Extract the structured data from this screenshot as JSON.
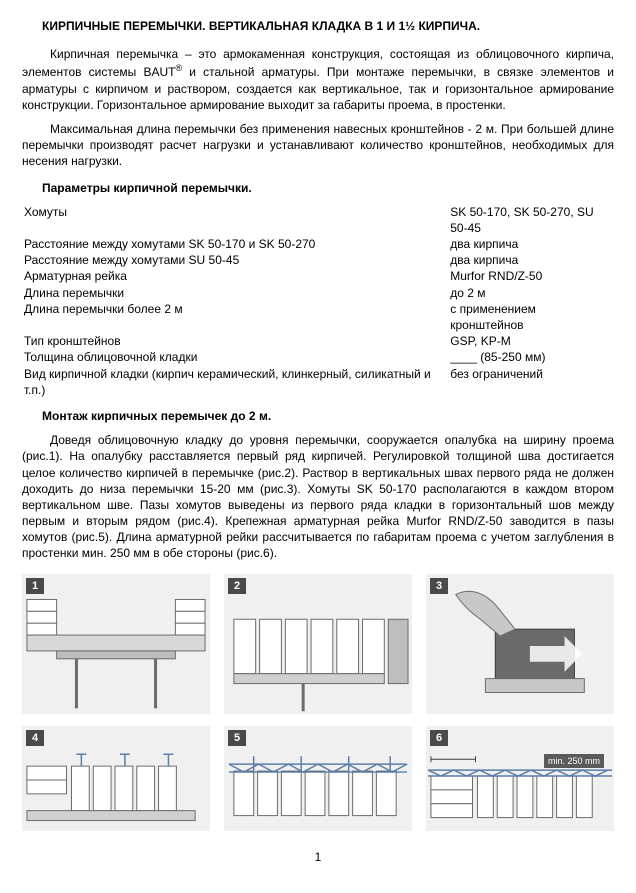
{
  "title": "КИРПИЧНЫЕ ПЕРЕМЫЧКИ. ВЕРТИКАЛЬНАЯ КЛАДКА В 1 И 1½ КИРПИЧА.",
  "intro1": "Кирпичная перемычка – это армокаменная конструкция, состоящая из облицовочного кирпича, элементов системы BAUT",
  "intro1b": " и стальной арматуры. При монтаже перемычки, в связке элементов и арматуры с кирпичом и раствором, создается как вертикальное, так и горизонтальное армирование конструкции. Горизонтальное армирование выходит за габариты проема, в простенки.",
  "intro2": "Максимальная длина перемычки без применения навесных кронштейнов - 2 м. При большей длине перемычки производят расчет нагрузки и устанавливают количество кронштейнов, необходимых для несения нагрузки.",
  "params_head": "Параметры кирпичной перемычки.",
  "params": [
    {
      "l": "Хомуты",
      "r": "SK 50-170, SK 50-270, SU 50-45"
    },
    {
      "l": "Расстояние между хомутами SK 50-170 и SK 50-270",
      "r": "два кирпича"
    },
    {
      "l": "Расстояние между хомутами SU 50-45",
      "r": "два кирпича"
    },
    {
      "l": "Арматурная рейка",
      "r": "Murfor RND/Z-50"
    },
    {
      "l": "Длина перемычки",
      "r": "до 2 м"
    },
    {
      "l": "Длина перемычки более 2 м",
      "r": "с применением кронштейнов"
    },
    {
      "l": "Тип кронштейнов",
      "r": "GSP, KP-M"
    },
    {
      "l": "Толщина облицовочной кладки",
      "r": "____ (85-250 мм)"
    },
    {
      "l": "Вид кирпичной кладки (кирпич керамический, клинкерный, силикатный и т.п.)",
      "r": "без ограничений"
    }
  ],
  "install_head": "Монтаж кирпичных перемычек до 2 м.",
  "install_para": "Доведя облицовочную кладку до уровня перемычки, сооружается опалубка на ширину проема (рис.1). На опалубку расставляется первый ряд кирпичей. Регулировкой толщиной шва достигается целое количество кирпичей в перемычке (рис.2). Раствор в вертикальных швах первого ряда не должен доходить до низа перемычки 15-20 мм (рис.3). Хомуты SK 50-170 располагаются в каждом втором вертикальном шве. Пазы хомутов выведены из первого ряда кладки в горизонтальный шов между первым и вторым рядом (рис.4). Крепежная арматурная рейка Murfor RND/Z-50 заводится в пазы хомутов (рис.5).   Длина арматурной рейки рассчитывается по габаритам проема с учетом заглубления в простенки мин. 250 мм в обе стороны (рис.6).",
  "figures": {
    "row1": [
      {
        "n": "1"
      },
      {
        "n": "2"
      },
      {
        "n": "3"
      }
    ],
    "row2": [
      {
        "n": "4"
      },
      {
        "n": "5"
      },
      {
        "n": "6",
        "annot": "min. 250 mm"
      }
    ]
  },
  "page_number": "1",
  "colors": {
    "fig_bg": "#f0f0f0",
    "fig_stroke": "#6a6a6a",
    "fig_light": "#ffffff",
    "fig_mid": "#bdbdbd",
    "fig_dark": "#3a3a3a",
    "line_blue": "#5b7ea8"
  }
}
